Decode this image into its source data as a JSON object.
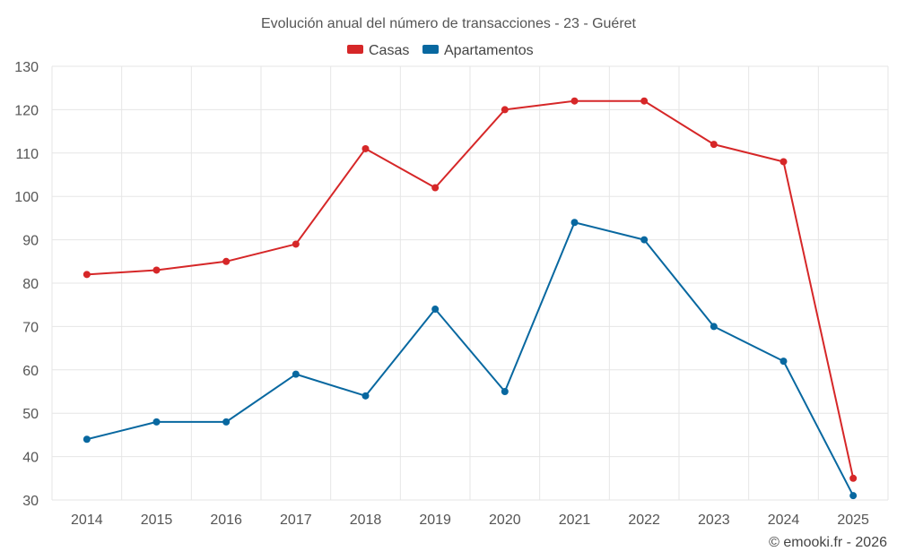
{
  "chart_data": {
    "type": "line",
    "title": "Evolución anual del número de transacciones - 23 - Guéret",
    "categories": [
      "2014",
      "2015",
      "2016",
      "2017",
      "2018",
      "2019",
      "2020",
      "2021",
      "2022",
      "2023",
      "2024",
      "2025"
    ],
    "series": [
      {
        "name": "Casas",
        "color": "#d62728",
        "values": [
          82,
          83,
          85,
          89,
          111,
          102,
          120,
          122,
          122,
          112,
          108,
          35
        ]
      },
      {
        "name": "Apartamentos",
        "color": "#0868a0",
        "values": [
          44,
          48,
          48,
          59,
          54,
          74,
          55,
          94,
          90,
          70,
          62,
          31
        ]
      }
    ],
    "ylim": [
      30,
      130
    ],
    "yticks": [
      30,
      40,
      50,
      60,
      70,
      80,
      90,
      100,
      110,
      120,
      130
    ],
    "xlabel": "",
    "ylabel": "",
    "grid": true,
    "legend": "top-center"
  },
  "credit": "© emooki.fr - 2026"
}
